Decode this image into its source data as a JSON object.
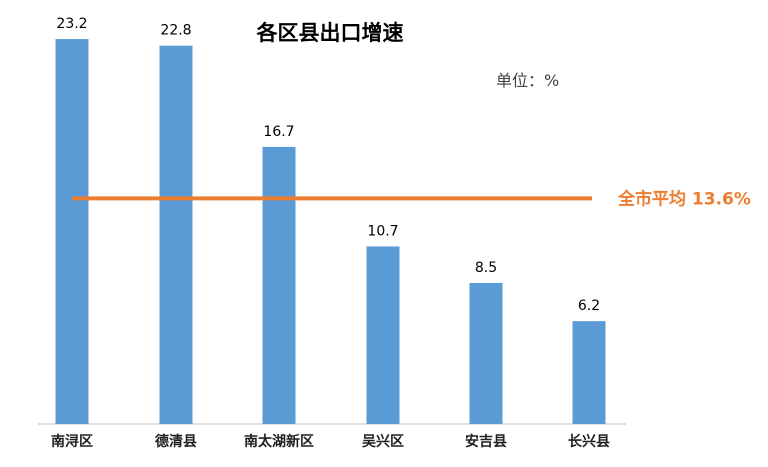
{
  "chart_data": {
    "type": "bar",
    "title": "各区县出口增速",
    "unit_label": "单位：%",
    "categories": [
      "南浔区",
      "德清县",
      "南太湖新区",
      "吴兴区",
      "安吉县",
      "长兴县"
    ],
    "values": [
      23.2,
      22.8,
      16.7,
      10.7,
      8.5,
      6.2
    ],
    "value_labels": [
      "23.2",
      "22.8",
      "16.7",
      "10.7",
      "8.5",
      "6.2"
    ],
    "ylim": [
      0,
      25
    ],
    "grid": false,
    "reference_line": {
      "value": 13.6,
      "label": "全市平均 13.6%"
    },
    "colors": {
      "bar": "#5b9bd5",
      "reference_line": "#ed7d31",
      "axis": "#bfbfbf"
    }
  }
}
